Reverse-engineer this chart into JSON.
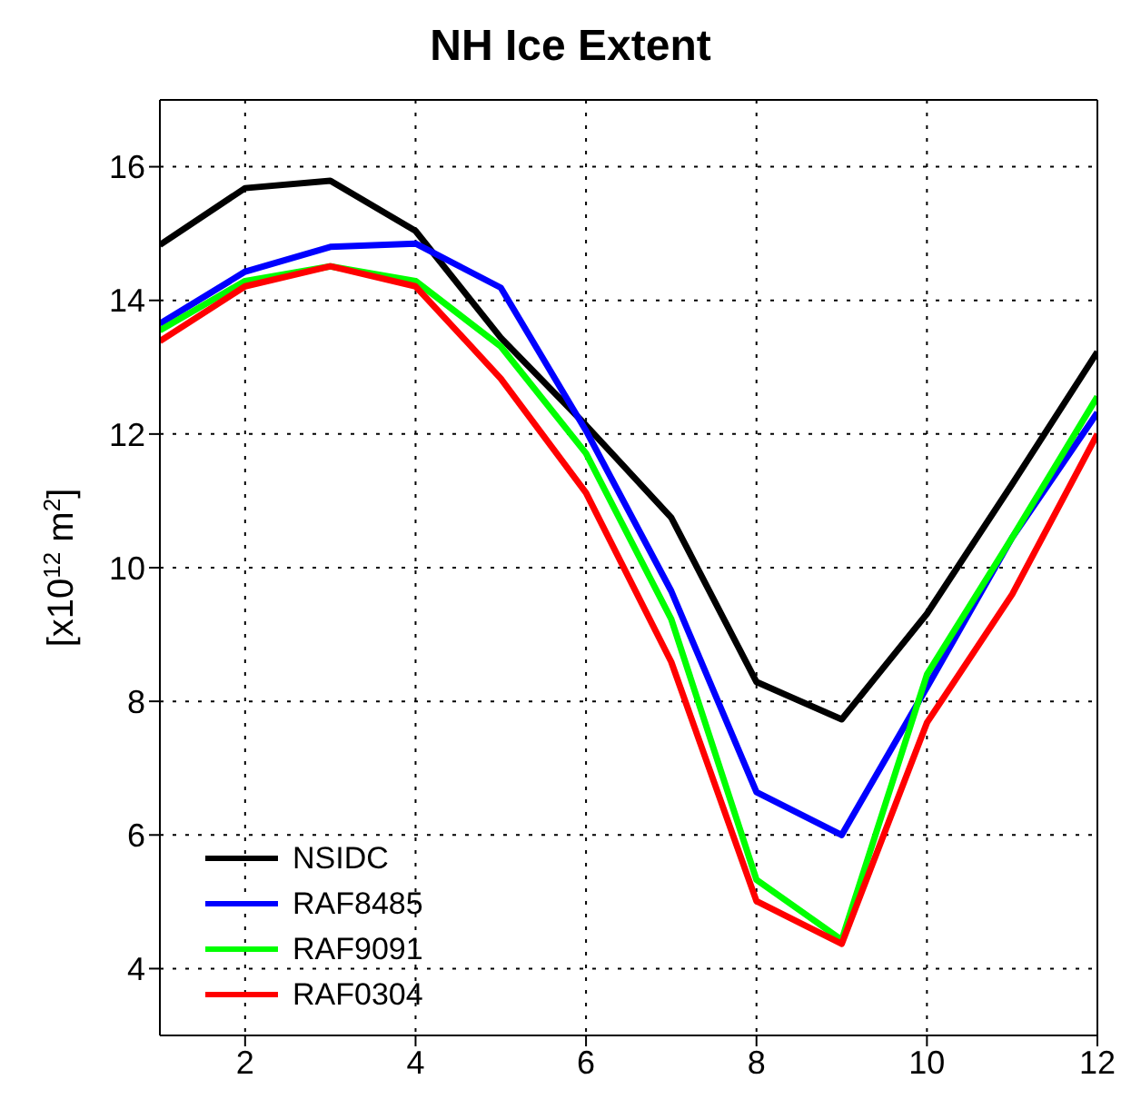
{
  "chart_data": {
    "type": "line",
    "title": "NH Ice Extent",
    "ylabel": "[x10$^{12}$ m$^{2}$]",
    "x": [
      1,
      2,
      3,
      4,
      5,
      6,
      7,
      8,
      9,
      10,
      11,
      12
    ],
    "series": [
      {
        "name": "NSIDC",
        "color": "#000000",
        "values": [
          14.83,
          15.68,
          15.79,
          15.04,
          13.44,
          12.13,
          10.75,
          8.29,
          7.73,
          9.31,
          11.25,
          13.23
        ]
      },
      {
        "name": "RAF8485",
        "color": "#0000ff",
        "values": [
          13.65,
          14.43,
          14.8,
          14.85,
          14.19,
          12.05,
          9.65,
          6.64,
          6.0,
          8.21,
          10.45,
          12.32
        ]
      },
      {
        "name": "RAF9091",
        "color": "#00ff00",
        "values": [
          13.55,
          14.29,
          14.51,
          14.29,
          13.31,
          11.71,
          9.23,
          5.33,
          4.43,
          8.4,
          10.45,
          12.56
        ]
      },
      {
        "name": "RAF0304",
        "color": "#ff0000",
        "values": [
          13.39,
          14.21,
          14.51,
          14.21,
          12.83,
          11.12,
          8.59,
          5.01,
          4.37,
          7.68,
          9.6,
          12.0
        ]
      }
    ],
    "xlim": [
      1,
      12
    ],
    "xticks": [
      2,
      4,
      6,
      8,
      10,
      12
    ],
    "ylim": [
      3,
      17
    ],
    "yticks": [
      4,
      6,
      8,
      10,
      12,
      14,
      16
    ],
    "grid": true,
    "legend": "bottom left",
    "marker": "none",
    "line_style": "solid"
  }
}
